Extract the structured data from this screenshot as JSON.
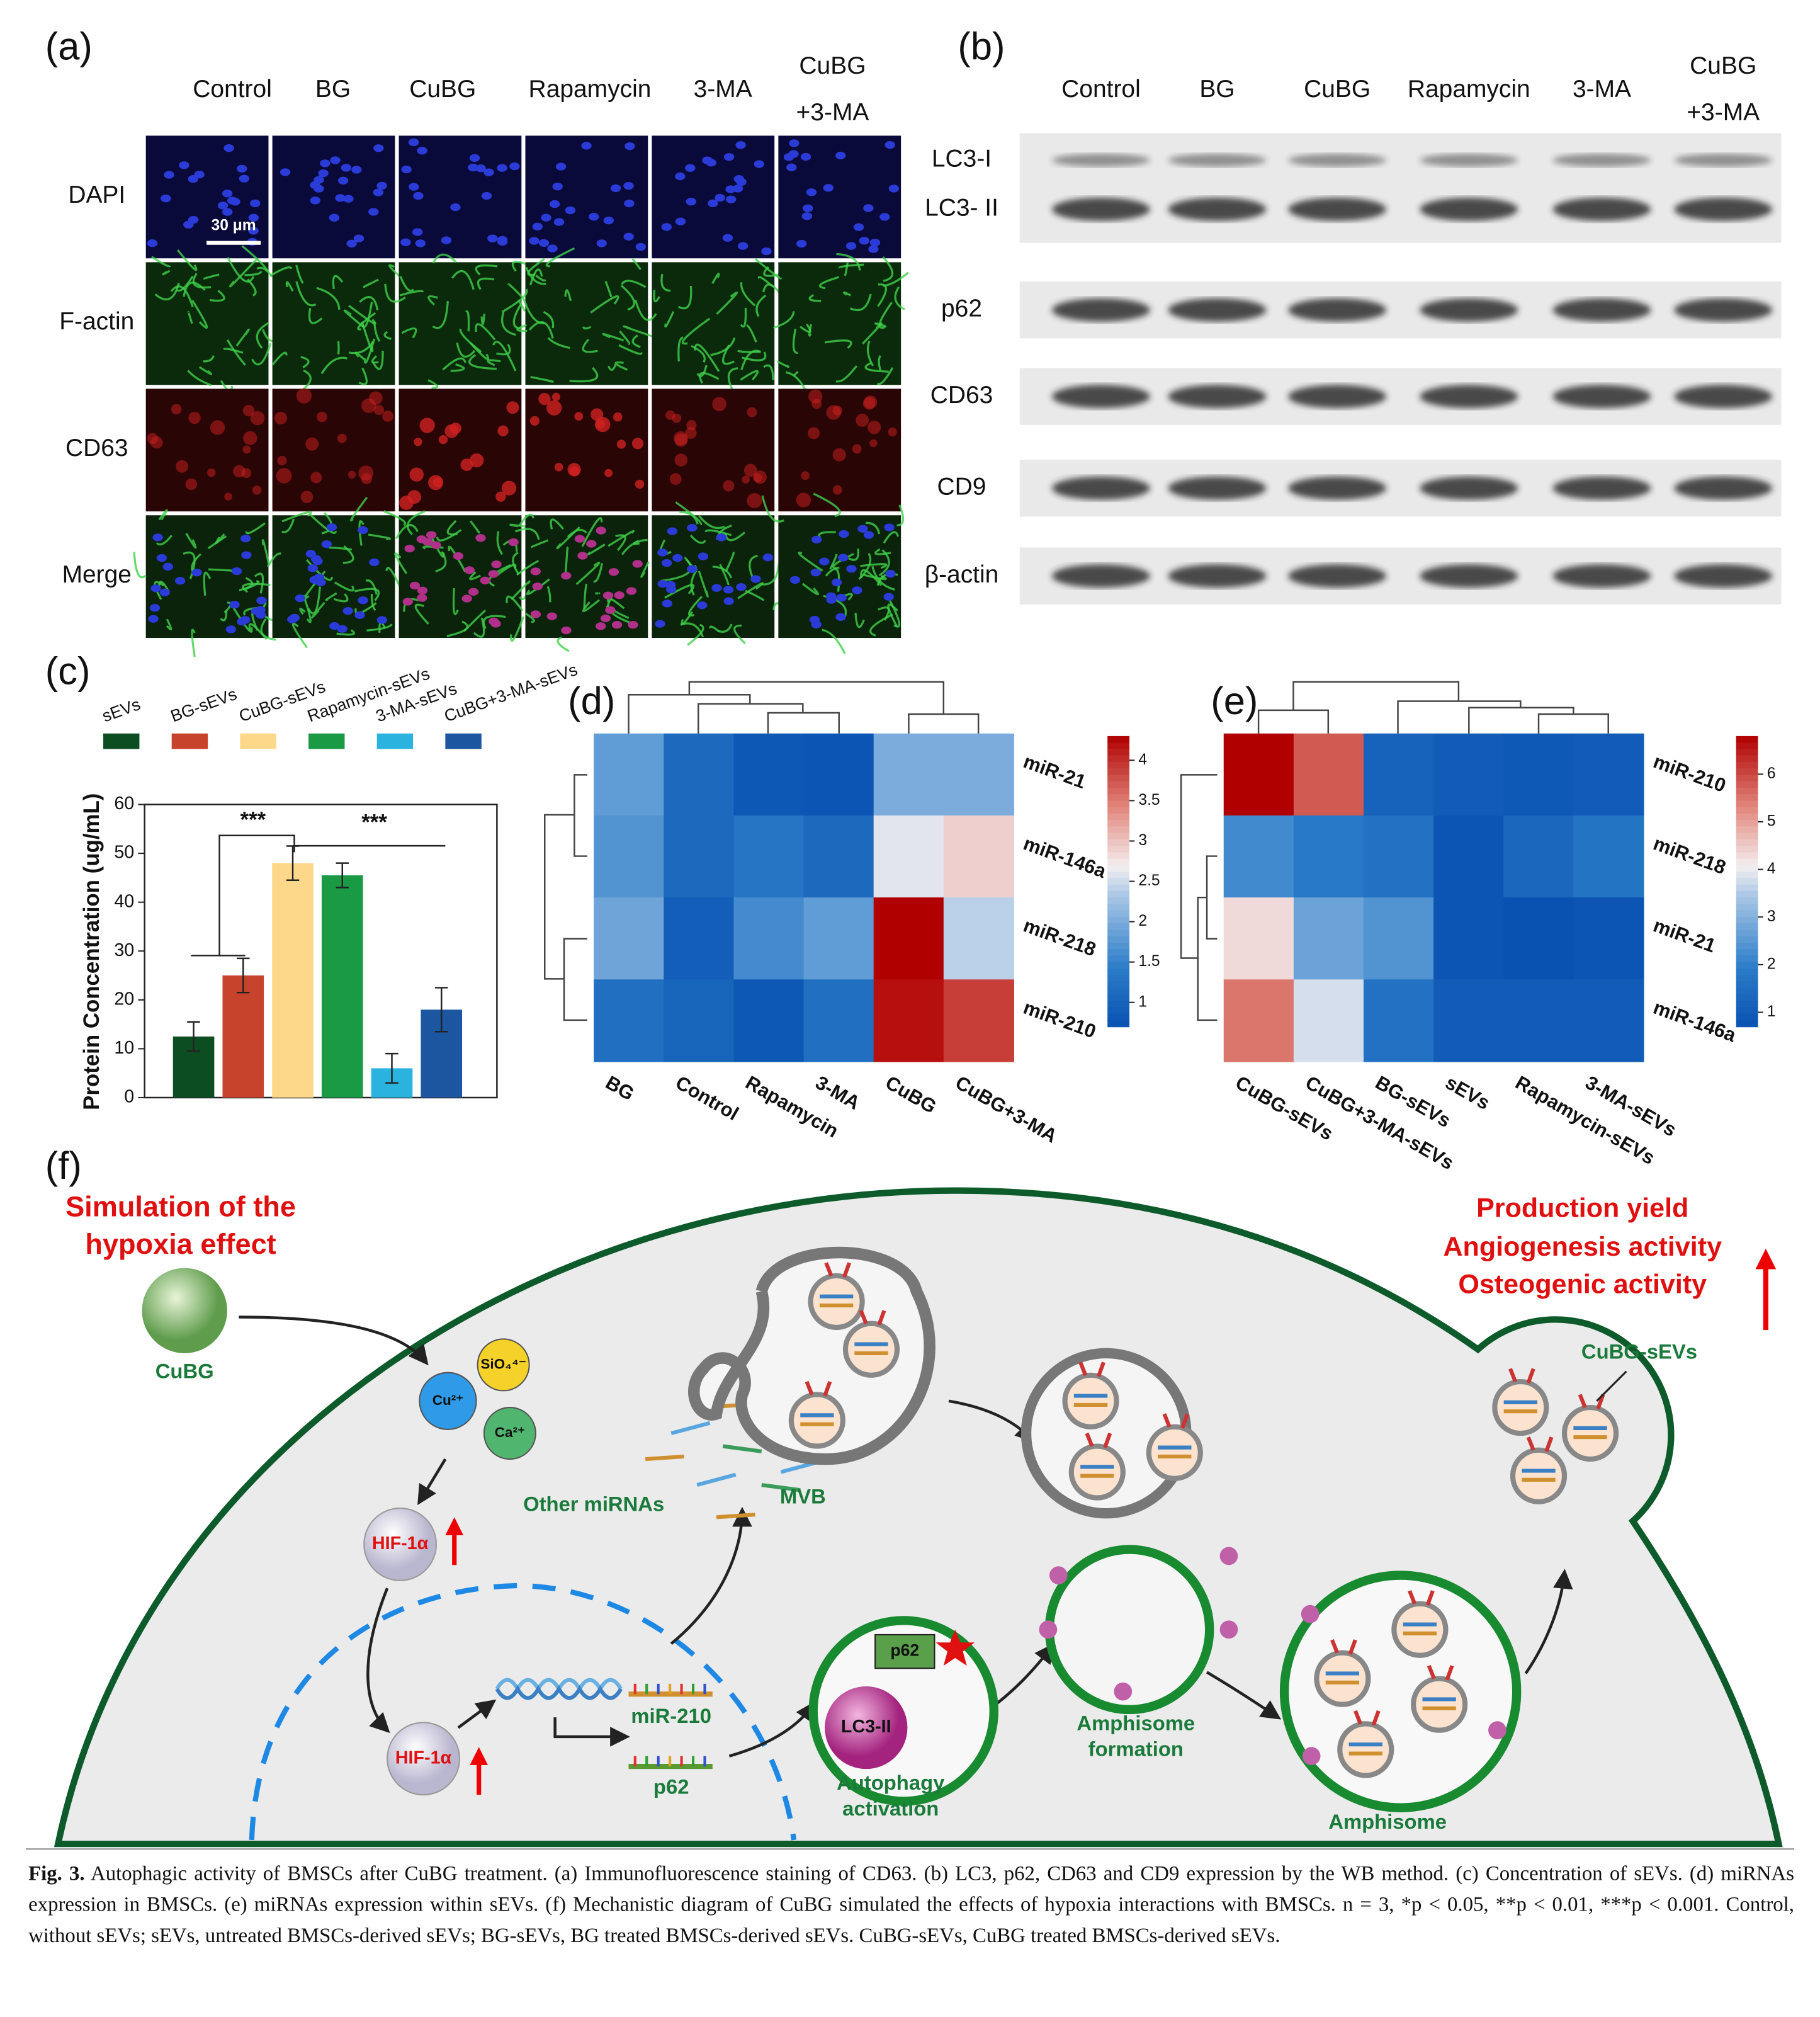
{
  "panel_a": {
    "label": "(a)",
    "columns": [
      "Control",
      "BG",
      "CuBG",
      "Rapamycin",
      "3-MA",
      "CuBG\n+3-MA"
    ],
    "rows": [
      "DAPI",
      "F-actin",
      "CD63",
      "Merge"
    ],
    "scale_bar": "30 μm"
  },
  "panel_b": {
    "label": "(b)",
    "columns": [
      "Control",
      "BG",
      "CuBG",
      "Rapamycin",
      "3-MA",
      "CuBG\n+3-MA"
    ],
    "rows": [
      "LC3-I",
      "LC3- II",
      "p62",
      "CD63",
      "CD9",
      "β-actin"
    ]
  },
  "chart_data": [
    {
      "type": "bar",
      "label": "(c)",
      "ylabel": "Protein Concentration (ug/mL)",
      "categories": [
        "sEVs",
        "BG-sEVs",
        "CuBG-sEVs",
        "Rapamycin-sEVs",
        "3-MA-sEVs",
        "CuBG+3-MA-sEVs"
      ],
      "values": [
        12.5,
        25,
        48,
        45.5,
        6,
        18
      ],
      "errors": [
        3,
        3.5,
        3.5,
        2.5,
        3,
        4.5
      ],
      "colors": [
        "#0d4d22",
        "#c8432c",
        "#fdd88a",
        "#1a9a45",
        "#2bb3e0",
        "#1c56a0"
      ],
      "ylim": [
        0,
        60
      ],
      "yticks": [
        0,
        10,
        20,
        30,
        40,
        50,
        60
      ],
      "annotations": [
        "***",
        "***"
      ]
    },
    {
      "type": "heatmap",
      "label": "(d)",
      "categories": [
        "BG",
        "Control",
        "Rapamycin",
        "3-MA",
        "CuBG",
        "CuBG+3-MA"
      ],
      "rows": [
        "miR-21",
        "miR-146a",
        "miR-218",
        "miR-210"
      ],
      "values": [
        [
          1.8,
          1.1,
          0.8,
          0.75,
          2.0,
          2.0
        ],
        [
          1.7,
          1.1,
          1.3,
          1.1,
          2.6,
          2.9
        ],
        [
          1.9,
          0.9,
          1.6,
          1.8,
          4.3,
          2.4
        ],
        [
          1.2,
          1.0,
          0.8,
          1.2,
          4.2,
          3.9
        ]
      ],
      "clim": [
        0.7,
        4.3
      ],
      "cticks": [
        1,
        1.5,
        2,
        2.5,
        3,
        3.5,
        4
      ]
    },
    {
      "type": "heatmap",
      "label": "(e)",
      "categories": [
        "CuBG-sEVs",
        "CuBG+3-MA-sEVs",
        "BG-sEVs",
        "sEVs",
        "Rapamycin-sEVs",
        "3-MA-sEVs"
      ],
      "rows": [
        "miR-210",
        "miR-218",
        "miR-21",
        "miR-146a"
      ],
      "values": [
        [
          6.8,
          5.8,
          1.2,
          1.0,
          0.9,
          1.0
        ],
        [
          2.2,
          1.8,
          1.6,
          0.8,
          1.3,
          1.7
        ],
        [
          4.3,
          2.7,
          2.4,
          0.8,
          0.6,
          0.8
        ],
        [
          5.5,
          3.8,
          1.6,
          1.0,
          1.0,
          1.0
        ]
      ],
      "clim": [
        0.7,
        6.8
      ],
      "cticks": [
        1,
        2,
        3,
        4,
        5,
        6
      ]
    }
  ],
  "panel_f": {
    "label": "(f)",
    "hypoxia": "Simulation of the\nhypoxia effect",
    "cubg": "CuBG",
    "cu": "Cu²⁺",
    "sio4": "SiO₄⁴⁻",
    "ca": "Ca²⁺",
    "hif_1": "HIF-1α",
    "hif_2": "HIF-1α",
    "other_mirnas": "Other miRNAs",
    "mvb": "MVB",
    "mir210": "miR-210",
    "p62_gene": "p62",
    "p62_protein": "p62",
    "lc3": "LC3-II",
    "autophagy": "Autophagy\nactivation",
    "amphisome_formation": "Amphisome\nformation",
    "amphisome": "Amphisome",
    "cubg_sevs": "CuBG-sEVs",
    "production": "Production yield",
    "angiogenesis": "Angiogenesis activity",
    "osteogenic": "Osteogenic activity"
  },
  "caption": {
    "title": "Fig. 3.",
    "text": "Autophagic activity of BMSCs after CuBG treatment. (a) Immunofluorescence staining of CD63. (b) LC3, p62, CD63 and CD9 expression by the WB method. (c) Concentration of sEVs. (d) miRNAs expression in BMSCs. (e) miRNAs expression within sEVs. (f) Mechanistic diagram of CuBG simulated the effects of hypoxia interactions with BMSCs. n = 3, *p < 0.05, **p < 0.01, ***p < 0.001. Control, without sEVs; sEVs, untreated BMSCs-derived sEVs; BG-sEVs, BG treated BMSCs-derived sEVs. CuBG-sEVs, CuBG treated BMSCs-derived sEVs."
  }
}
